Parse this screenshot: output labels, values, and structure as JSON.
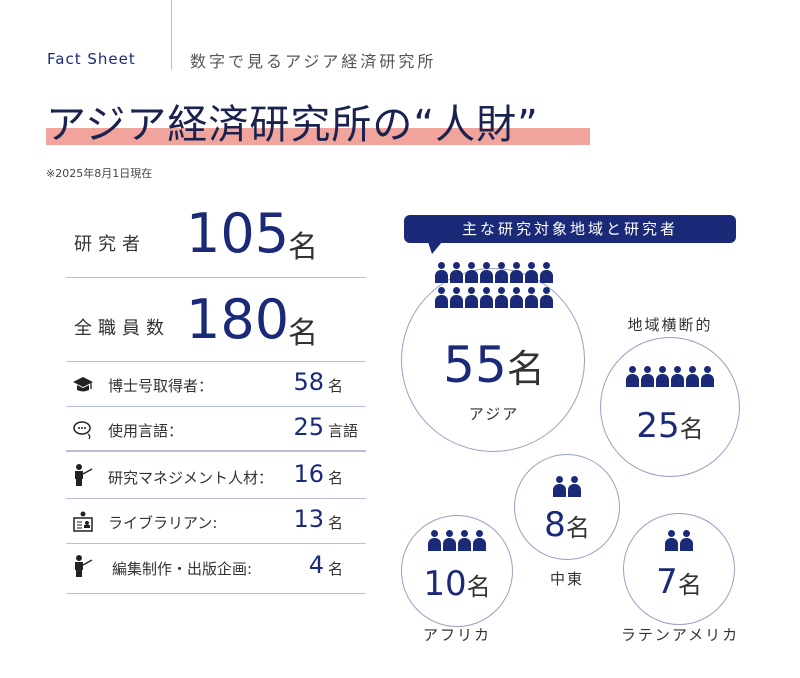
{
  "header": {
    "fact_sheet": "Fact Sheet",
    "subtitle": "数字で見るアジア経済研究所"
  },
  "title": "アジア経済研究所の“人財”",
  "note": "※2025年8月1日現在",
  "summary": [
    {
      "label": "研究者",
      "value": "105",
      "unit": "名"
    },
    {
      "label": "全職員数",
      "value": "180",
      "unit": "名"
    }
  ],
  "details": [
    {
      "icon": "graduation-cap-icon",
      "label": "博士号取得者：",
      "value": "58",
      "unit": "名"
    },
    {
      "icon": "speech-bubbles-icon",
      "label": "使用言語：",
      "value": "25",
      "unit": "言語"
    },
    {
      "icon": "presenter-icon",
      "label": "研究マネジメント人材：",
      "value": "16",
      "unit": "名"
    },
    {
      "icon": "id-card-icon",
      "label": "ライブラリアン:",
      "value": "13",
      "unit": "名"
    },
    {
      "icon": "presenter-icon",
      "label": "編集制作・出版企画:",
      "value": "4",
      "unit": "名"
    }
  ],
  "regions_heading": "主な研究対象地域と研究者",
  "regions": [
    {
      "name": "アジア",
      "value": "55",
      "unit": "名"
    },
    {
      "name": "地域横断的",
      "value": "25",
      "unit": "名"
    },
    {
      "name": "中東",
      "value": "8",
      "unit": "名"
    },
    {
      "name": "アフリカ",
      "value": "10",
      "unit": "名"
    },
    {
      "name": "ラテンアメリカ",
      "value": "7",
      "unit": "名"
    }
  ],
  "colors": {
    "navy": "#1b2a78",
    "highlight": "#f0a49c"
  }
}
